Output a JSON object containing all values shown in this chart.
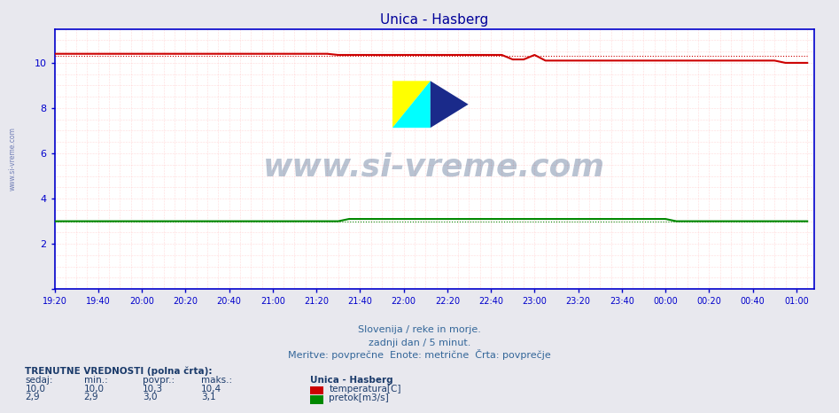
{
  "title": "Unica - Hasberg",
  "title_color": "#000099",
  "bg_color": "#e8e8ee",
  "plot_bg_color": "#ffffff",
  "axis_color": "#0000cc",
  "tick_color": "#0000cc",
  "watermark_text": "www.si-vreme.com",
  "watermark_color": "#1a3a6a",
  "watermark_alpha": 0.3,
  "left_label_text": "www.si-vreme.com",
  "subtitle1": "Slovenija / reke in morje.",
  "subtitle2": "zadnji dan / 5 minut.",
  "subtitle3": "Meritve: povprečne  Enote: metrične  Črta: povprečje",
  "footer_title": "TRENUTNE VREDNOSTI (polna črta):",
  "footer_cols": [
    "sedaj:",
    "min.:",
    "povpr.:",
    "maks.:"
  ],
  "footer_row1": [
    "10,0",
    "10,0",
    "10,3",
    "10,4"
  ],
  "footer_row2": [
    "2,9",
    "2,9",
    "3,0",
    "3,1"
  ],
  "footer_station": "Unica - Hasberg",
  "footer_label1": "temperatura[C]",
  "footer_label2": "pretok[m3/s]",
  "footer_color1": "#cc0000",
  "footer_color2": "#008800",
  "x_start_min": 0,
  "x_end_min": 348,
  "x_tick_step": 20,
  "x_tick_labels": [
    "19:20",
    "19:40",
    "20:00",
    "20:20",
    "20:40",
    "21:00",
    "21:20",
    "21:40",
    "22:00",
    "22:20",
    "22:40",
    "23:00",
    "23:20",
    "23:40",
    "00:00",
    "00:20",
    "00:40",
    "01:00"
  ],
  "ylim": [
    0,
    11.5
  ],
  "yticks": [
    0,
    2,
    4,
    6,
    8,
    10
  ],
  "temp_color": "#cc0000",
  "flow_color": "#008800",
  "grid_minor_color": "#ffaaaa",
  "grid_major_color": "#ffaaaa"
}
